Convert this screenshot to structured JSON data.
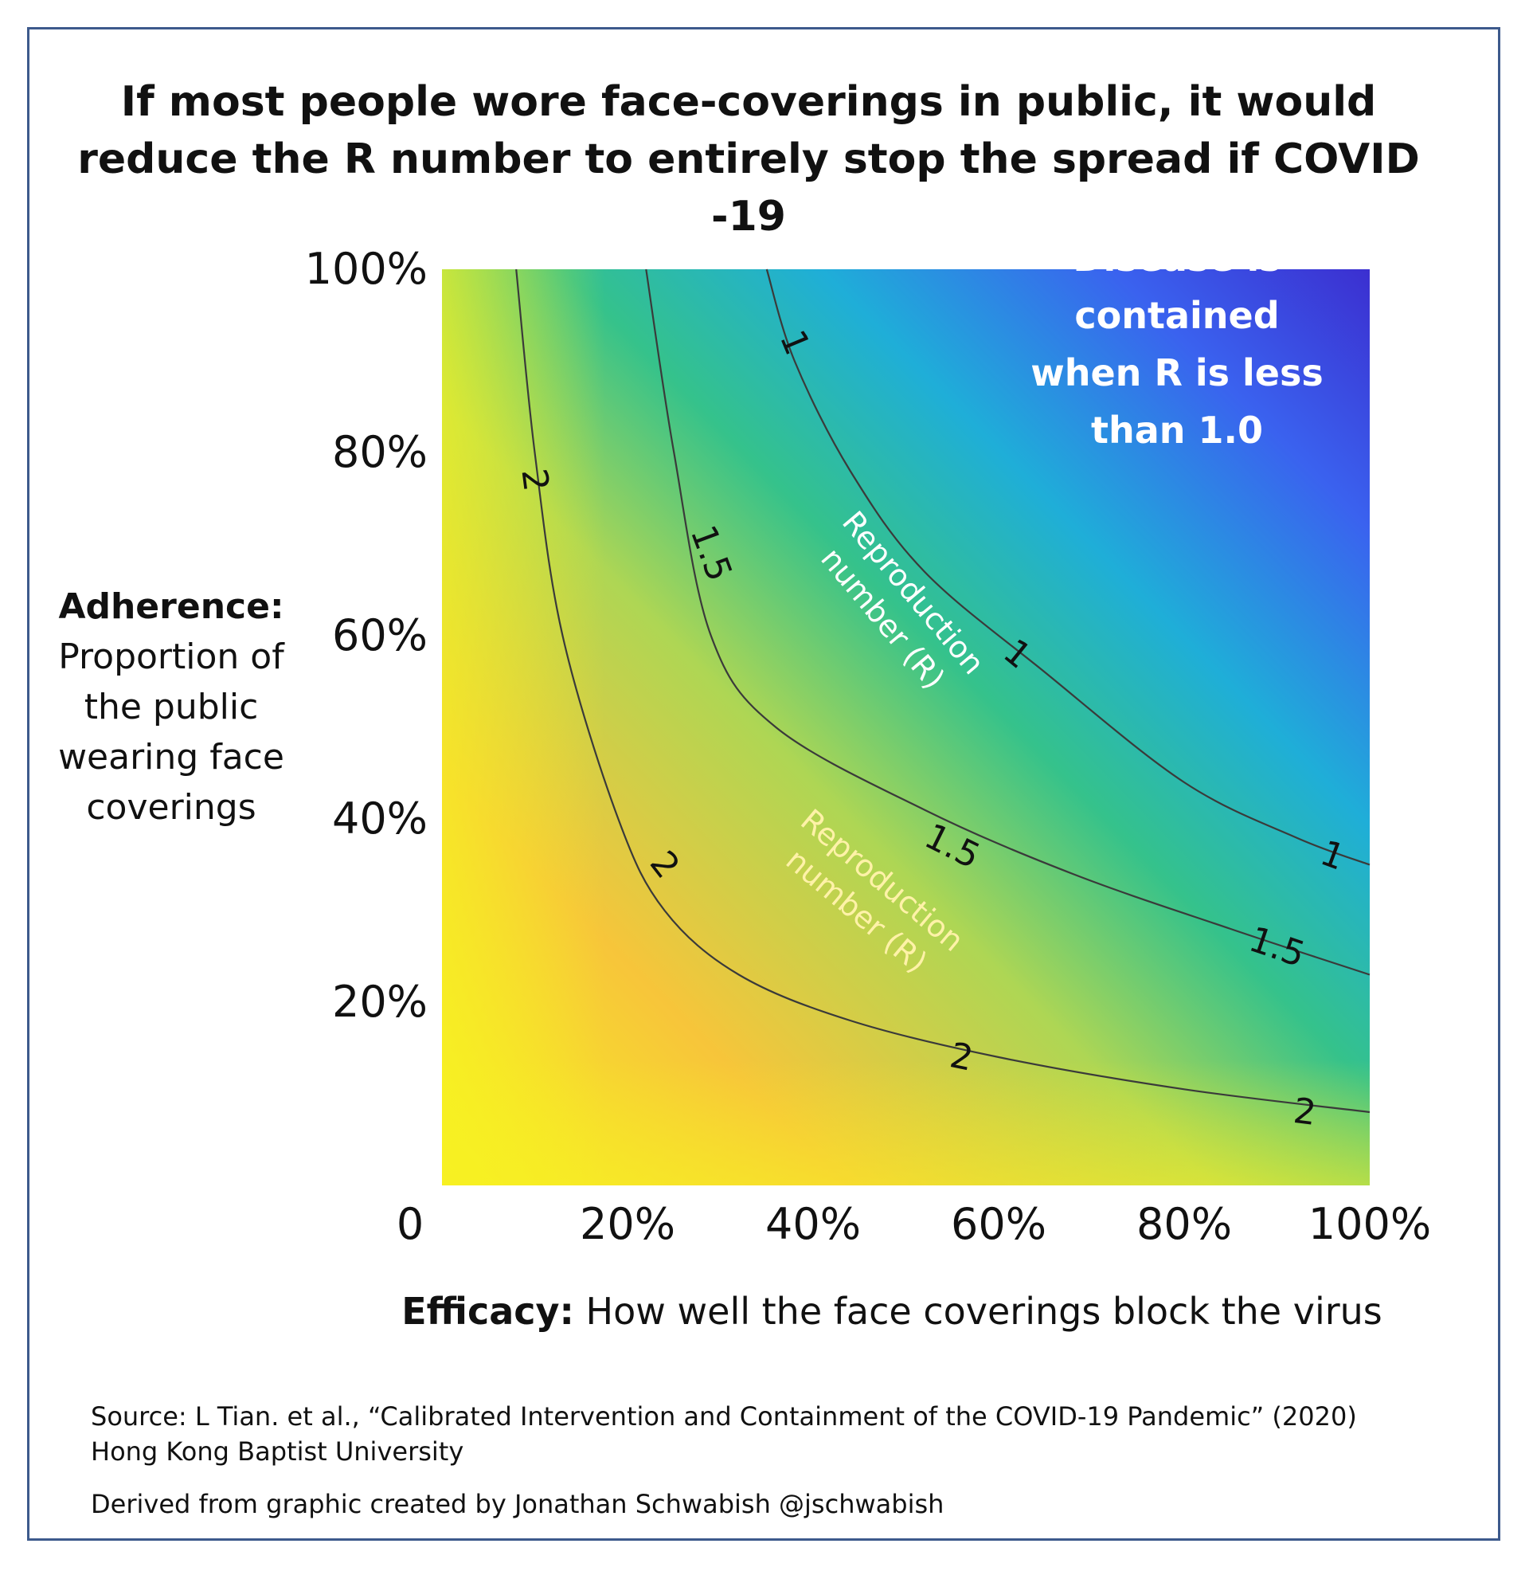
{
  "chart_data": {
    "type": "heatmap",
    "title": "If most people wore face-coverings in public, it would reduce the R number to entirely stop the spread if COVID -19",
    "xlabel": {
      "bold": "Efficacy:",
      "text": " How well the face coverings block the virus"
    },
    "ylabel": {
      "bold": "Adherence:",
      "text": "Proportion of the public wearing face coverings"
    },
    "x_ticks": [
      {
        "value": 0,
        "label": "0"
      },
      {
        "value": 20,
        "label": "20%"
      },
      {
        "value": 40,
        "label": "40%"
      },
      {
        "value": 60,
        "label": "60%"
      },
      {
        "value": 80,
        "label": "80%"
      },
      {
        "value": 100,
        "label": "100%"
      }
    ],
    "y_ticks": [
      {
        "value": 20,
        "label": "20%"
      },
      {
        "value": 40,
        "label": "40%"
      },
      {
        "value": 60,
        "label": "60%"
      },
      {
        "value": 80,
        "label": "80%"
      },
      {
        "value": 100,
        "label": "100%"
      }
    ],
    "xlim": [
      0,
      100
    ],
    "ylim": [
      0,
      100
    ],
    "color_scale": [
      "#f7f420",
      "#f7c53a",
      "#aed654",
      "#35c28b",
      "#1faed8",
      "#3a62ef",
      "#3b2fd0"
    ],
    "contours": [
      {
        "level": 2,
        "label": "2",
        "points": [
          [
            8,
            100
          ],
          [
            10,
            80
          ],
          [
            13,
            60
          ],
          [
            19,
            40
          ],
          [
            24,
            30
          ],
          [
            32,
            23
          ],
          [
            44,
            18
          ],
          [
            60,
            14
          ],
          [
            80,
            10.5
          ],
          [
            100,
            8
          ]
        ],
        "label_positions": [
          [
            10,
            77
          ],
          [
            24,
            35
          ],
          [
            56,
            14
          ],
          [
            93,
            8
          ]
        ]
      },
      {
        "level": 1.5,
        "label": "1.5",
        "points": [
          [
            22,
            100
          ],
          [
            25,
            80
          ],
          [
            29,
            60
          ],
          [
            36,
            50
          ],
          [
            52,
            41
          ],
          [
            68,
            34
          ],
          [
            85,
            28
          ],
          [
            100,
            23
          ]
        ],
        "label_positions": [
          [
            29,
            69
          ],
          [
            55,
            37
          ],
          [
            90,
            26
          ]
        ]
      },
      {
        "level": 1,
        "label": "1",
        "points": [
          [
            35,
            100
          ],
          [
            38,
            90
          ],
          [
            44,
            78
          ],
          [
            52,
            67
          ],
          [
            65,
            56
          ],
          [
            80,
            44
          ],
          [
            92,
            38
          ],
          [
            100,
            35
          ]
        ],
        "label_positions": [
          [
            38,
            92
          ],
          [
            62,
            58
          ],
          [
            96,
            36
          ]
        ]
      }
    ],
    "annotations": [
      {
        "text": [
          "Disease is",
          "contained",
          "when R is less",
          "than 1.0"
        ],
        "color": "#ffffff",
        "bold": true
      },
      {
        "text": [
          "Reproduction",
          "number (R)"
        ],
        "color": "#ffffff"
      },
      {
        "text": [
          "Reproduction",
          "number (R)"
        ],
        "color": "#fff2a8"
      }
    ]
  },
  "source": {
    "line1": "Source: L Tian. et al., “Calibrated Intervention and Containment of the COVID-19 Pandemic” (2020)",
    "line2": "Hong Kong Baptist University"
  },
  "credit": "Derived from graphic created by Jonathan Schwabish @jschwabish"
}
